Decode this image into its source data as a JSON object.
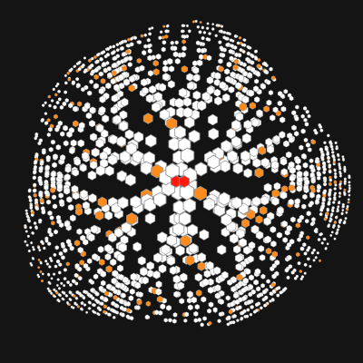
{
  "colors": {
    "background": "#141414",
    "cell_default": "#ffffff",
    "cell_outline": "#9a9a9a",
    "cell_highlight": "#ff8c1a",
    "cell_core": "#ff1a0d"
  },
  "graph": {
    "layout": "radial-cluster",
    "core_nodes": 2,
    "highlight_fraction": 0.11
  }
}
